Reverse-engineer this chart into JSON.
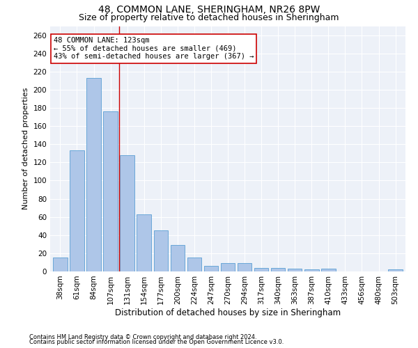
{
  "title1": "48, COMMON LANE, SHERINGHAM, NR26 8PW",
  "title2": "Size of property relative to detached houses in Sheringham",
  "xlabel": "Distribution of detached houses by size in Sheringham",
  "ylabel": "Number of detached properties",
  "categories": [
    "38sqm",
    "61sqm",
    "84sqm",
    "107sqm",
    "131sqm",
    "154sqm",
    "177sqm",
    "200sqm",
    "224sqm",
    "247sqm",
    "270sqm",
    "294sqm",
    "317sqm",
    "340sqm",
    "363sqm",
    "387sqm",
    "410sqm",
    "433sqm",
    "456sqm",
    "480sqm",
    "503sqm"
  ],
  "values": [
    15,
    133,
    213,
    176,
    128,
    63,
    45,
    29,
    15,
    6,
    9,
    9,
    4,
    4,
    3,
    2,
    3,
    0,
    0,
    0,
    2
  ],
  "bar_color": "#aec6e8",
  "bar_edge_color": "#5a9fd4",
  "vline_x": 3.5,
  "vline_color": "#cc0000",
  "annotation_line1": "48 COMMON LANE: 123sqm",
  "annotation_line2": "← 55% of detached houses are smaller (469)",
  "annotation_line3": "43% of semi-detached houses are larger (367) →",
  "annotation_box_color": "white",
  "annotation_box_edge_color": "#cc0000",
  "ylim": [
    0,
    270
  ],
  "yticks": [
    0,
    20,
    40,
    60,
    80,
    100,
    120,
    140,
    160,
    180,
    200,
    220,
    240,
    260
  ],
  "footnote1": "Contains HM Land Registry data © Crown copyright and database right 2024.",
  "footnote2": "Contains public sector information licensed under the Open Government Licence v3.0.",
  "bg_color": "#edf1f8",
  "title1_fontsize": 10,
  "title2_fontsize": 9,
  "xlabel_fontsize": 8.5,
  "ylabel_fontsize": 8,
  "tick_fontsize": 7.5,
  "annotation_fontsize": 7.5,
  "footnote_fontsize": 6
}
